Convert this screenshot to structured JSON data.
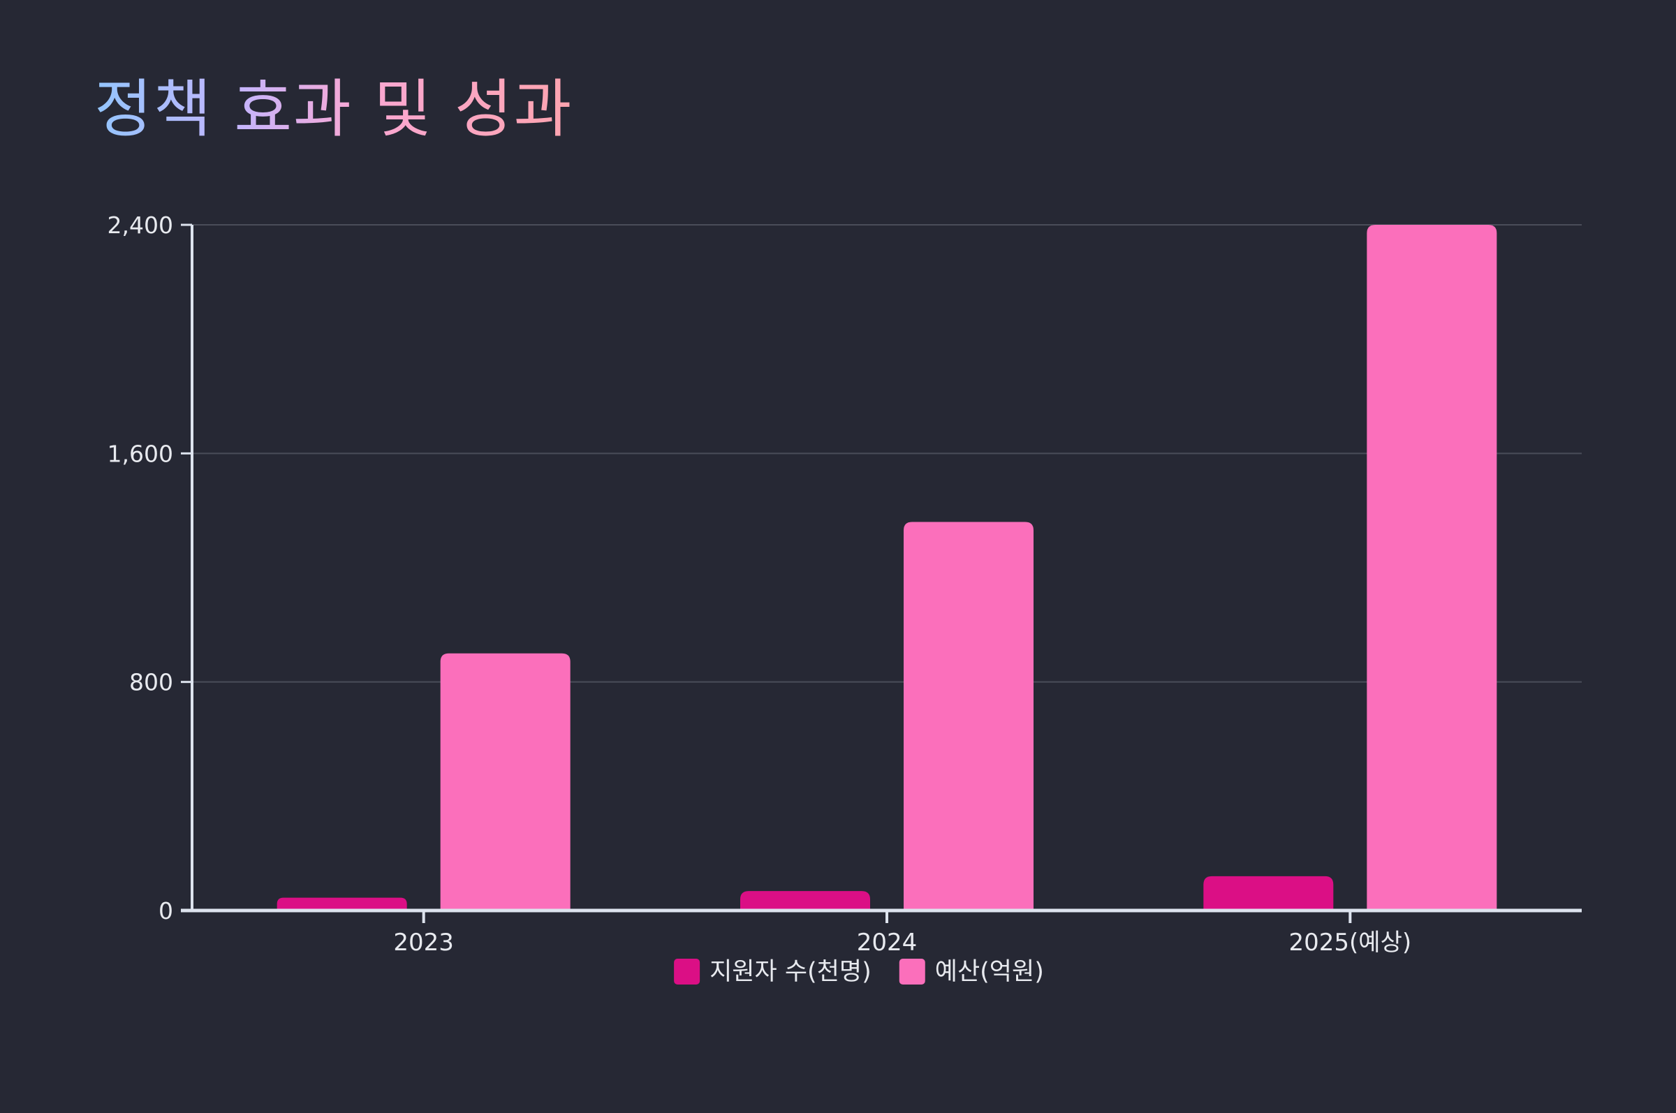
{
  "chart_data": {
    "type": "bar",
    "title": "정책 효과 및 성과",
    "categories": [
      "2023",
      "2024",
      "2025(예상)"
    ],
    "series": [
      {
        "name": "지원자 수(천명)",
        "values": [
          45,
          68,
          120
        ],
        "color": "#db0f85"
      },
      {
        "name": "예산(억원)",
        "values": [
          900,
          1360,
          2400
        ],
        "color": "#fb6fbb"
      }
    ],
    "y_ticks": [
      {
        "value": 0,
        "label": "0"
      },
      {
        "value": 800,
        "label": "800"
      },
      {
        "value": 1600,
        "label": "1,600"
      },
      {
        "value": 2400,
        "label": "2,400"
      }
    ],
    "ylim": [
      0,
      2400
    ],
    "grid": true,
    "legend_position": "bottom",
    "colors": {
      "background": "#262834",
      "axis": "#dde3ee",
      "grid": "#4a4d59",
      "text": "#e8eaef"
    }
  }
}
